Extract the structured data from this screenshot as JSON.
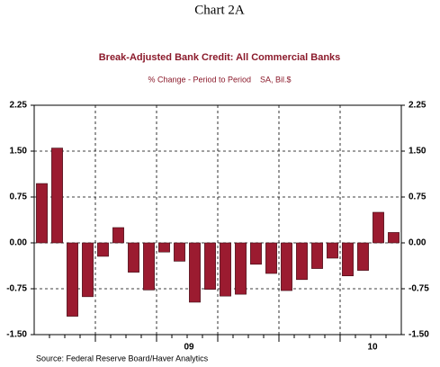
{
  "chart_data": {
    "type": "bar",
    "header": "Chart 2A",
    "title": "Break-Adjusted Bank Credit: All Commercial Banks",
    "subtitle": "% Change - Period to Period    SA, Bil.$",
    "source": "Source:  Federal Reserve Board/Haver Analytics",
    "categories": [
      null,
      null,
      null,
      null,
      null,
      null,
      null,
      null,
      null,
      null,
      "09",
      null,
      null,
      null,
      null,
      null,
      null,
      null,
      null,
      null,
      null,
      null,
      "10",
      null
    ],
    "values": [
      0.97,
      1.55,
      -1.2,
      -0.88,
      -0.22,
      0.25,
      -0.48,
      -0.77,
      -0.15,
      -0.3,
      -0.97,
      -0.76,
      -0.87,
      -0.84,
      -0.35,
      -0.5,
      -0.78,
      -0.6,
      -0.42,
      -0.25,
      -0.54,
      -0.45,
      0.5,
      0.17
    ],
    "color": "#9b1b30",
    "ylim": [
      -1.5,
      2.25
    ],
    "yticks": [
      2.25,
      {
        "value": 1.5,
        "label": "1.50"
      },
      0.75,
      {
        "value": 0,
        "label": "0.00"
      },
      -0.75,
      {
        "value": -1.5,
        "label": "-1.50"
      }
    ],
    "grid": true
  }
}
